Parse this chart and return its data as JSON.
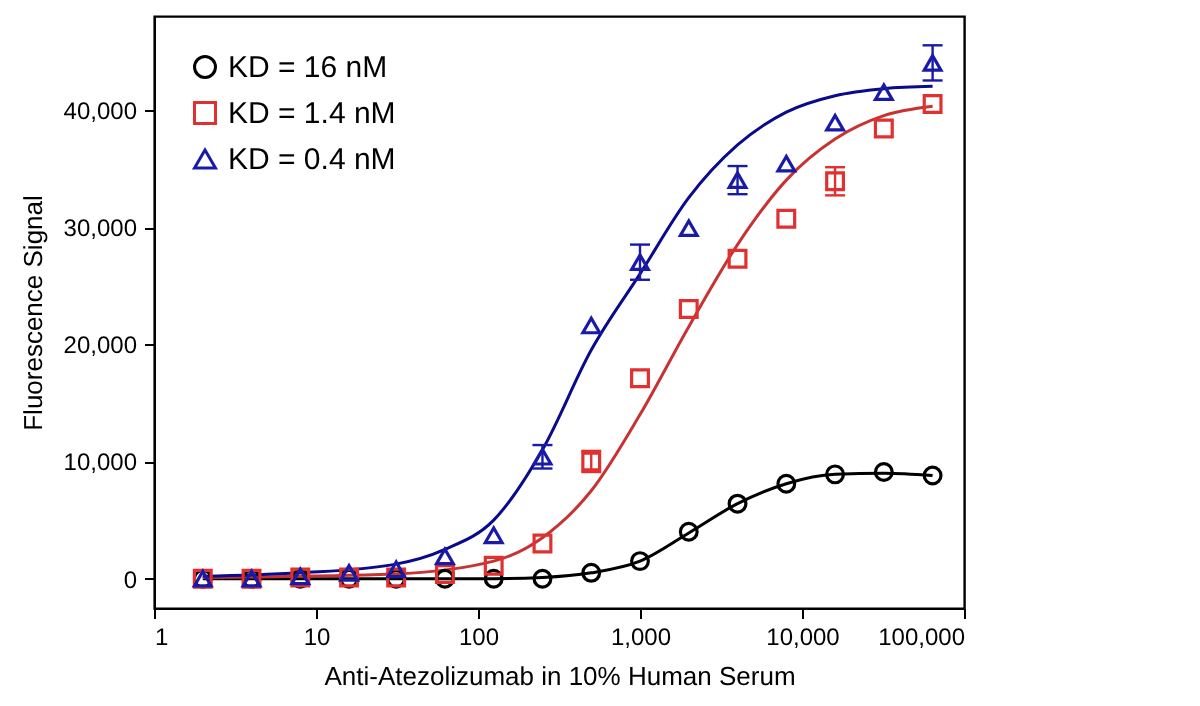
{
  "chart_data": {
    "type": "scatter",
    "xlabel": "Anti-Atezolizumab in 10% Human Serum",
    "ylabel": "Fluorescence Signal",
    "log": "x",
    "grid": false,
    "legend": "top left",
    "x": [
      2,
      4,
      8,
      16,
      31.25,
      62.5,
      125,
      250,
      500,
      1000,
      2000,
      4000,
      8000,
      16000,
      32000,
      64000
    ],
    "xlim": [
      1,
      100000
    ],
    "xticks": [
      1,
      10,
      100,
      {
        "value": 1000,
        "label": "1,000"
      },
      {
        "value": 10000,
        "label": "10,000"
      },
      {
        "value": 100000,
        "label": "100,000"
      }
    ],
    "ylim": [
      -2500,
      48000
    ],
    "yticks": [
      0,
      {
        "value": 10000,
        "label": "10,000"
      },
      {
        "value": 20000,
        "label": "20,000"
      },
      {
        "value": 30000,
        "label": "30,000"
      },
      {
        "value": 40000,
        "label": "40,000"
      }
    ],
    "series": [
      {
        "name": "KD = 16 nM",
        "color": "#000000",
        "marker": "circle",
        "values": [
          0,
          0,
          0,
          0,
          0,
          0,
          0,
          0,
          500,
          1500,
          4000,
          6400,
          8100,
          8900,
          9100,
          8800
        ]
      },
      {
        "name": "KD = 1.4 nM",
        "color": "#e03030",
        "marker": "square",
        "values": [
          0,
          0,
          100,
          100,
          100,
          400,
          1100,
          3000,
          10000,
          17100,
          23000,
          27300,
          30700,
          33900,
          38400,
          40500
        ],
        "errors": [
          null,
          null,
          null,
          null,
          null,
          null,
          null,
          null,
          900,
          null,
          null,
          null,
          null,
          1200,
          null,
          null
        ]
      },
      {
        "name": "KD = 0.4 nM",
        "color": "#1a1aa8",
        "marker": "triangle",
        "values": [
          0,
          0,
          200,
          500,
          800,
          1900,
          3700,
          10400,
          21600,
          27000,
          29900,
          34000,
          35400,
          38900,
          41500,
          44000
        ],
        "errors": [
          null,
          null,
          null,
          null,
          null,
          null,
          null,
          1000,
          null,
          1500,
          null,
          1200,
          null,
          null,
          null,
          1500
        ]
      },
      {
        "type": "line",
        "color": "#000000",
        "x": [
          2,
          125,
          250,
          500,
          1000,
          2000,
          4000,
          8000,
          16000,
          32000,
          64000
        ],
        "values": [
          0,
          0,
          100,
          500,
          1500,
          3900,
          6400,
          8100,
          8900,
          9000,
          8800
        ]
      },
      {
        "type": "line",
        "color": "#c83232",
        "x": [
          2,
          30,
          125,
          250,
          500,
          1000,
          2000,
          4000,
          8000,
          16000,
          32000,
          64000
        ],
        "values": [
          100,
          400,
          1500,
          3500,
          7500,
          14000,
          21500,
          28500,
          34000,
          37500,
          39500,
          40300
        ]
      },
      {
        "type": "line",
        "color": "#0a0a8c",
        "x": [
          2,
          8,
          30,
          62.5,
          125,
          250,
          500,
          1000,
          2000,
          4000,
          8000,
          16000,
          32000,
          64000
        ],
        "values": [
          200,
          500,
          1200,
          2500,
          5000,
          11000,
          19500,
          26000,
          32500,
          37000,
          39800,
          41200,
          41800,
          42000
        ]
      }
    ]
  }
}
